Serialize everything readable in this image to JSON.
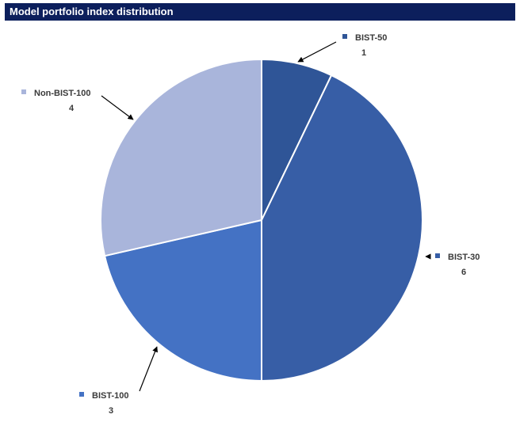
{
  "chart_data": {
    "type": "pie",
    "title": "Model portfolio index distribution",
    "slices": [
      {
        "label": "BIST-50",
        "value": 1,
        "color": "#2f5597"
      },
      {
        "label": "BIST-30",
        "value": 6,
        "color": "#375ea6"
      },
      {
        "label": "BIST-100",
        "value": 3,
        "color": "#4472c4"
      },
      {
        "label": "Non-BIST-100",
        "value": 4,
        "color": "#a9b5db"
      }
    ],
    "start_angle_deg": 0,
    "direction": "clockwise",
    "legend": "none",
    "data_labels": "outside-with-leader-lines"
  }
}
